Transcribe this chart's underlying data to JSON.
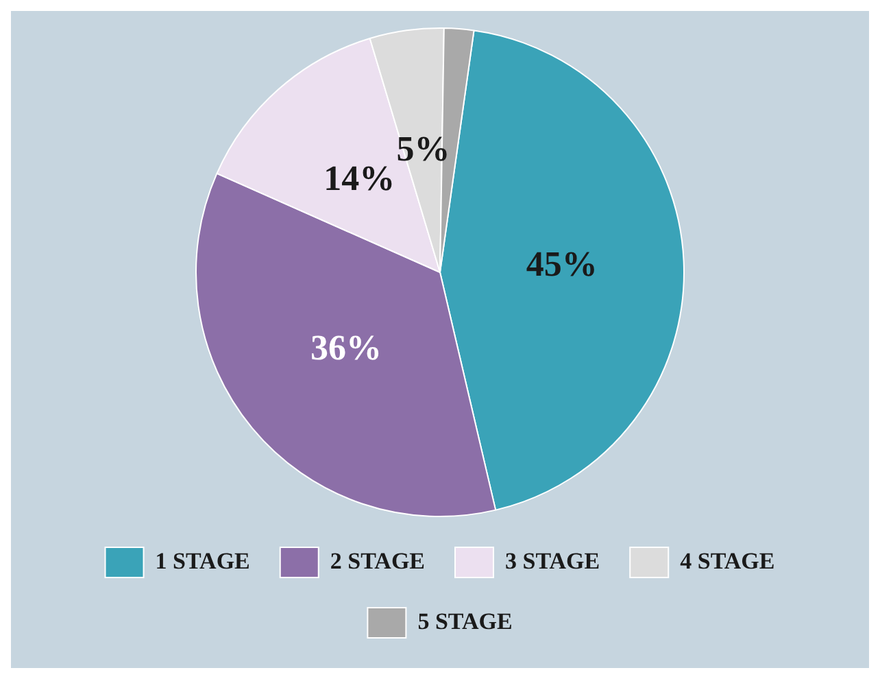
{
  "chart_data": {
    "type": "pie",
    "categories": [
      "1 STAGE",
      "2 STAGE",
      "3 STAGE",
      "4 STAGE",
      "5 STAGE"
    ],
    "values": [
      45,
      36,
      14,
      5,
      2
    ],
    "value_labels": [
      "45%",
      "36%",
      "14%",
      "5%",
      null
    ],
    "colors": [
      "#3aa3b8",
      "#8c6fa8",
      "#ece0f0",
      "#dcdcdc",
      "#a9a9a9"
    ],
    "legend": "bottom"
  }
}
